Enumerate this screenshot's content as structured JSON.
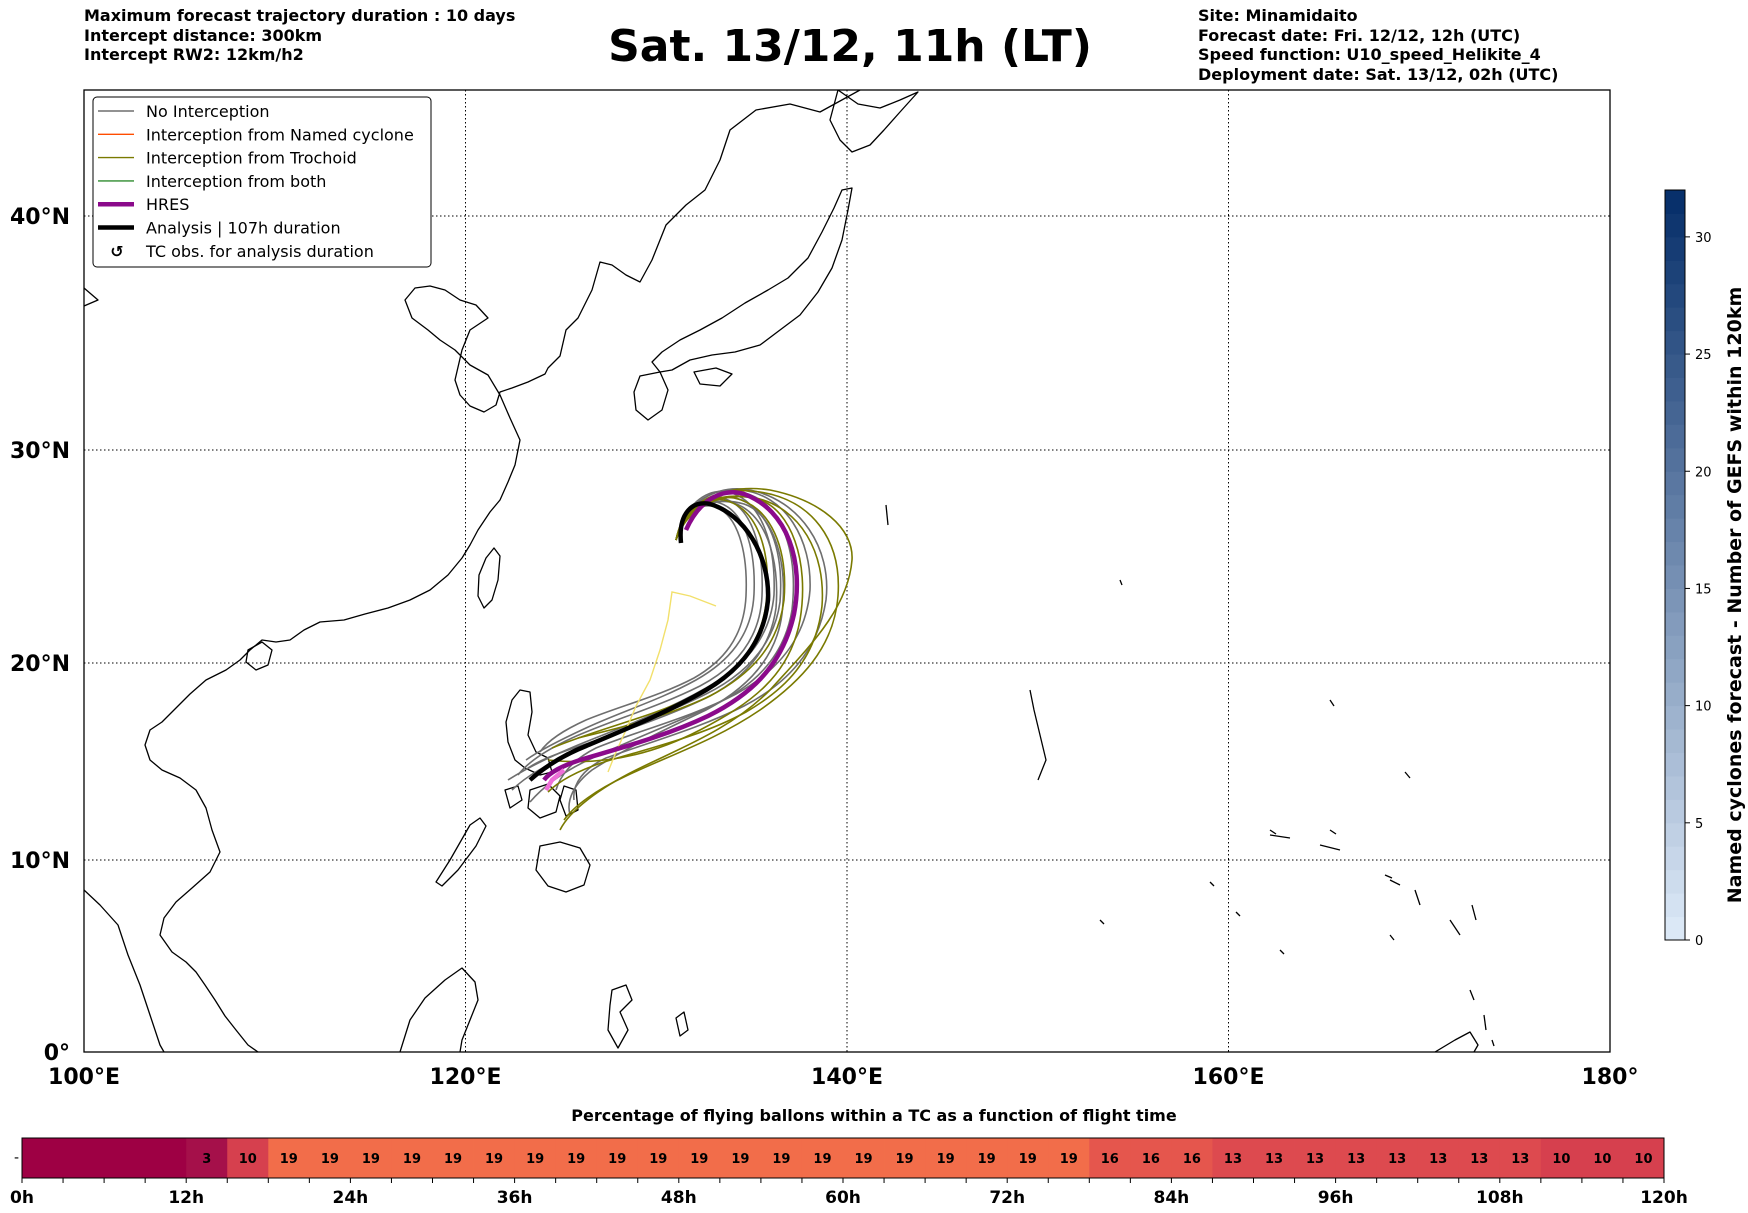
{
  "header": {
    "left_lines": [
      "Maximum forecast trajectory duration : 10 days",
      "Intercept distance: 300km",
      "Intercept RW2: 12km/h2"
    ],
    "title": "Sat. 13/12, 11h (LT)",
    "right_lines": [
      "Site: Minamidaito",
      "Forecast date: Fri. 12/12, 12h (UTC)",
      "Speed function: U10_speed_Helikite_4",
      "Deployment date: Sat. 13/12, 02h (UTC)"
    ]
  },
  "map": {
    "lon_range": [
      100,
      180
    ],
    "lat_range": [
      0,
      46
    ],
    "lon_ticks": [
      {
        "value": 100,
        "label": "100°E"
      },
      {
        "value": 120,
        "label": "120°E"
      },
      {
        "value": 140,
        "label": "140°E"
      },
      {
        "value": 160,
        "label": "160°E"
      },
      {
        "value": 180,
        "label": "180°"
      }
    ],
    "lat_ticks": [
      {
        "value": 0,
        "label": "0°"
      },
      {
        "value": 10,
        "label": "10°N"
      },
      {
        "value": 20,
        "label": "20°N"
      },
      {
        "value": 30,
        "label": "30°N"
      },
      {
        "value": 40,
        "label": "40°N"
      }
    ],
    "grid": "dotted",
    "colors": {
      "no_interception": "#6e6e6e",
      "named_cyclone": "#ff4d00",
      "trochoid": "#7a7a00",
      "both": "#2e8b2e",
      "hres": "#8b0a8b",
      "analysis": "#000000",
      "ending": "#ee6fd8",
      "faint_track": "#f2e06b"
    },
    "legend": {
      "position": "top-left",
      "items": [
        {
          "label": "No Interception",
          "kind": "line",
          "color_key": "no_interception"
        },
        {
          "label": "Interception from Named cyclone",
          "kind": "line",
          "color_key": "named_cyclone"
        },
        {
          "label": "Interception from Trochoid",
          "kind": "line",
          "color_key": "trochoid"
        },
        {
          "label": "Interception from both",
          "kind": "line",
          "color_key": "both"
        },
        {
          "label": "HRES",
          "kind": "thick",
          "color_key": "hres"
        },
        {
          "label": "Analysis | 107h duration",
          "kind": "thick",
          "color_key": "analysis"
        },
        {
          "label": "TC obs. for analysis duration",
          "kind": "symbol",
          "color_key": "analysis"
        }
      ]
    }
  },
  "colorbar": {
    "label": "Named cyclones forecast - Number of GEFS within 120km",
    "min": 0,
    "max": 32,
    "ticks": [
      0,
      5,
      10,
      15,
      20,
      25,
      30
    ],
    "color_low": "#dbe8f6",
    "color_high": "#08306b"
  },
  "strip": {
    "title": "Percentage of flying ballons within a TC as a function of flight time",
    "axis_max_hours": 120,
    "axis_labels": [
      "0h",
      "12h",
      "24h",
      "36h",
      "48h",
      "60h",
      "72h",
      "84h",
      "96h",
      "108h",
      "120h"
    ],
    "segments": [
      {
        "start_h": 0,
        "end_h": 12,
        "value": "",
        "color": "#9e0044"
      },
      {
        "start_h": 12,
        "end_h": 15,
        "value": "3",
        "color": "#a5104a"
      },
      {
        "start_h": 15,
        "end_h": 18,
        "value": "10",
        "color": "#d6404e"
      },
      {
        "start_h": 18,
        "end_h": 21,
        "value": "19",
        "color": "#f26d4a"
      },
      {
        "start_h": 21,
        "end_h": 24,
        "value": "19",
        "color": "#f26d4a"
      },
      {
        "start_h": 24,
        "end_h": 27,
        "value": "19",
        "color": "#f26d4a"
      },
      {
        "start_h": 27,
        "end_h": 30,
        "value": "19",
        "color": "#f26d4a"
      },
      {
        "start_h": 30,
        "end_h": 33,
        "value": "19",
        "color": "#f26d4a"
      },
      {
        "start_h": 33,
        "end_h": 36,
        "value": "19",
        "color": "#f26d4a"
      },
      {
        "start_h": 36,
        "end_h": 39,
        "value": "19",
        "color": "#f26d4a"
      },
      {
        "start_h": 39,
        "end_h": 42,
        "value": "19",
        "color": "#f26d4a"
      },
      {
        "start_h": 42,
        "end_h": 45,
        "value": "19",
        "color": "#f26d4a"
      },
      {
        "start_h": 45,
        "end_h": 48,
        "value": "19",
        "color": "#f26d4a"
      },
      {
        "start_h": 48,
        "end_h": 51,
        "value": "19",
        "color": "#f26d4a"
      },
      {
        "start_h": 51,
        "end_h": 54,
        "value": "19",
        "color": "#f26d4a"
      },
      {
        "start_h": 54,
        "end_h": 57,
        "value": "19",
        "color": "#f26d4a"
      },
      {
        "start_h": 57,
        "end_h": 60,
        "value": "19",
        "color": "#f26d4a"
      },
      {
        "start_h": 60,
        "end_h": 63,
        "value": "19",
        "color": "#f26d4a"
      },
      {
        "start_h": 63,
        "end_h": 66,
        "value": "19",
        "color": "#f26d4a"
      },
      {
        "start_h": 66,
        "end_h": 69,
        "value": "19",
        "color": "#f26d4a"
      },
      {
        "start_h": 69,
        "end_h": 72,
        "value": "19",
        "color": "#f26d4a"
      },
      {
        "start_h": 72,
        "end_h": 75,
        "value": "19",
        "color": "#f26d4a"
      },
      {
        "start_h": 75,
        "end_h": 78,
        "value": "19",
        "color": "#f26d4a"
      },
      {
        "start_h": 78,
        "end_h": 81,
        "value": "16",
        "color": "#e5564d"
      },
      {
        "start_h": 81,
        "end_h": 84,
        "value": "16",
        "color": "#e5564d"
      },
      {
        "start_h": 84,
        "end_h": 87,
        "value": "16",
        "color": "#e5564d"
      },
      {
        "start_h": 87,
        "end_h": 90,
        "value": "13",
        "color": "#dd4a4f"
      },
      {
        "start_h": 90,
        "end_h": 93,
        "value": "13",
        "color": "#dd4a4f"
      },
      {
        "start_h": 93,
        "end_h": 96,
        "value": "13",
        "color": "#dd4a4f"
      },
      {
        "start_h": 96,
        "end_h": 99,
        "value": "13",
        "color": "#dd4a4f"
      },
      {
        "start_h": 99,
        "end_h": 102,
        "value": "13",
        "color": "#dd4a4f"
      },
      {
        "start_h": 102,
        "end_h": 105,
        "value": "13",
        "color": "#dd4a4f"
      },
      {
        "start_h": 105,
        "end_h": 108,
        "value": "13",
        "color": "#dd4a4f"
      },
      {
        "start_h": 108,
        "end_h": 111,
        "value": "13",
        "color": "#dd4a4f"
      },
      {
        "start_h": 111,
        "end_h": 114,
        "value": "10",
        "color": "#d6404e"
      },
      {
        "start_h": 114,
        "end_h": 117,
        "value": "10",
        "color": "#d6404e"
      },
      {
        "start_h": 117,
        "end_h": 120,
        "value": "10",
        "color": "#d6404e"
      }
    ]
  }
}
